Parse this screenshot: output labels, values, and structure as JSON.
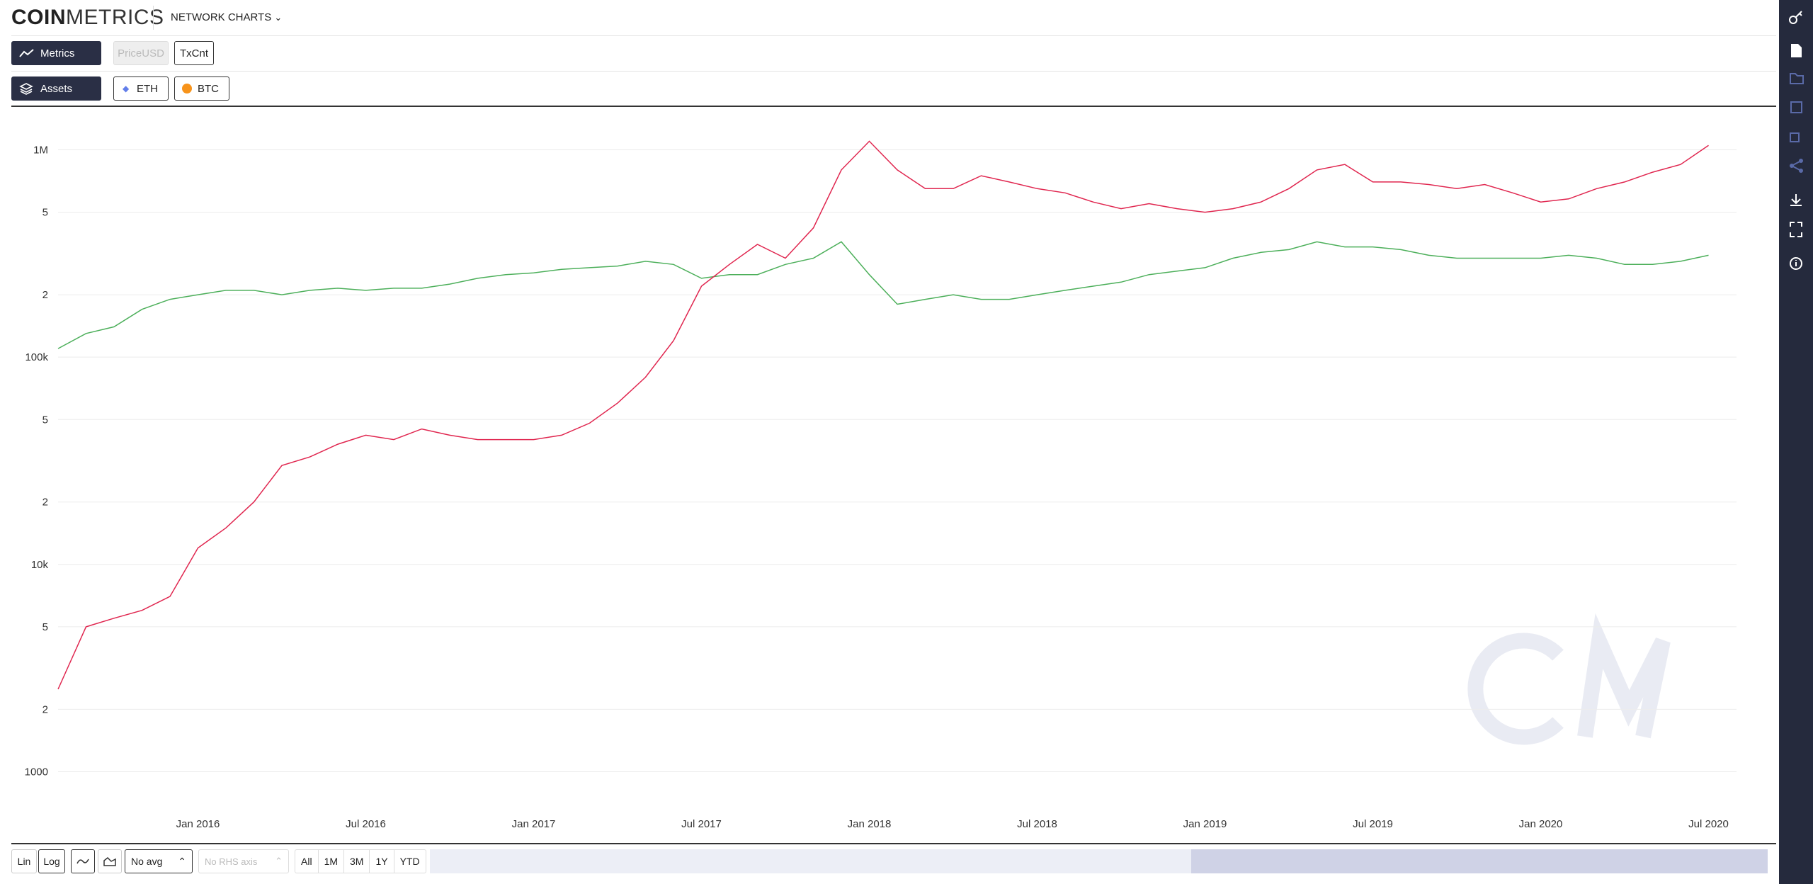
{
  "header": {
    "logo_bold": "COIN",
    "logo_light": "METRICS",
    "section": "NETWORK CHARTS"
  },
  "toolbar": {
    "metrics_label": "Metrics",
    "metrics": [
      "PriceUSD",
      "TxCnt"
    ],
    "assets_label": "Assets"
  },
  "controls": {
    "scale": [
      "Lin",
      "Log"
    ],
    "avg": "No avg",
    "rhs": "No RHS axis",
    "ranges": [
      "All",
      "1M",
      "3M",
      "1Y",
      "YTD"
    ]
  },
  "chart_data": {
    "type": "line",
    "log_y": true,
    "grid": true,
    "x": [
      "2015-08",
      "2015-09",
      "2015-10",
      "2015-11",
      "2015-12",
      "2016-01",
      "2016-02",
      "2016-03",
      "2016-04",
      "2016-05",
      "2016-06",
      "2016-07",
      "2016-08",
      "2016-09",
      "2016-10",
      "2016-11",
      "2016-12",
      "2017-01",
      "2017-02",
      "2017-03",
      "2017-04",
      "2017-05",
      "2017-06",
      "2017-07",
      "2017-08",
      "2017-09",
      "2017-10",
      "2017-11",
      "2017-12",
      "2018-01",
      "2018-02",
      "2018-03",
      "2018-04",
      "2018-05",
      "2018-06",
      "2018-07",
      "2018-08",
      "2018-09",
      "2018-10",
      "2018-11",
      "2018-12",
      "2019-01",
      "2019-02",
      "2019-03",
      "2019-04",
      "2019-05",
      "2019-06",
      "2019-07",
      "2019-08",
      "2019-09",
      "2019-10",
      "2019-11",
      "2019-12",
      "2020-01",
      "2020-02",
      "2020-03",
      "2020-04",
      "2020-05",
      "2020-06",
      "2020-07"
    ],
    "series": [
      {
        "name": "ETH",
        "color": "#e0264f",
        "values": [
          2500,
          5000,
          5500,
          6000,
          7000,
          12000,
          15000,
          20000,
          30000,
          33000,
          38000,
          42000,
          40000,
          45000,
          42000,
          40000,
          40000,
          40000,
          42000,
          48000,
          60000,
          80000,
          120000,
          220000,
          280000,
          350000,
          300000,
          420000,
          800000,
          1100000,
          800000,
          650000,
          650000,
          750000,
          700000,
          650000,
          620000,
          560000,
          520000,
          550000,
          520000,
          500000,
          520000,
          560000,
          650000,
          800000,
          850000,
          700000,
          700000,
          680000,
          650000,
          680000,
          620000,
          560000,
          580000,
          650000,
          700000,
          780000,
          850000,
          1050000
        ]
      },
      {
        "name": "BTC",
        "color": "#4caf5a",
        "values": [
          110000,
          130000,
          140000,
          170000,
          190000,
          200000,
          210000,
          210000,
          200000,
          210000,
          215000,
          210000,
          215000,
          215000,
          225000,
          240000,
          250000,
          255000,
          265000,
          270000,
          275000,
          290000,
          280000,
          240000,
          250000,
          250000,
          280000,
          300000,
          360000,
          250000,
          180000,
          190000,
          200000,
          190000,
          190000,
          200000,
          210000,
          220000,
          230000,
          250000,
          260000,
          270000,
          300000,
          320000,
          330000,
          360000,
          340000,
          340000,
          330000,
          310000,
          300000,
          300000,
          300000,
          300000,
          310000,
          300000,
          280000,
          280000,
          290000,
          310000
        ]
      }
    ],
    "xlim": [
      "2015-08",
      "2020-08"
    ],
    "xticks": [
      {
        "value": "2016-01",
        "label": "Jan 2016"
      },
      {
        "value": "2016-07",
        "label": "Jul 2016"
      },
      {
        "value": "2017-01",
        "label": "Jan 2017"
      },
      {
        "value": "2017-07",
        "label": "Jul 2017"
      },
      {
        "value": "2018-01",
        "label": "Jan 2018"
      },
      {
        "value": "2018-07",
        "label": "Jul 2018"
      },
      {
        "value": "2019-01",
        "label": "Jan 2019"
      },
      {
        "value": "2019-07",
        "label": "Jul 2019"
      },
      {
        "value": "2020-01",
        "label": "Jan 2020"
      },
      {
        "value": "2020-07",
        "label": "Jul 2020"
      }
    ],
    "ylim": [
      750,
      1500000
    ],
    "yticks": [
      1000,
      {
        "value": 2000,
        "label": "2"
      },
      {
        "value": 5000,
        "label": "5"
      },
      {
        "value": 10000,
        "label": "10k"
      },
      {
        "value": 20000,
        "label": "2"
      },
      {
        "value": 50000,
        "label": "5"
      },
      {
        "value": 100000,
        "label": "100k"
      },
      {
        "value": 200000,
        "label": "2"
      },
      {
        "value": 500000,
        "label": "5"
      },
      {
        "value": 1000000,
        "label": "1M"
      }
    ]
  }
}
